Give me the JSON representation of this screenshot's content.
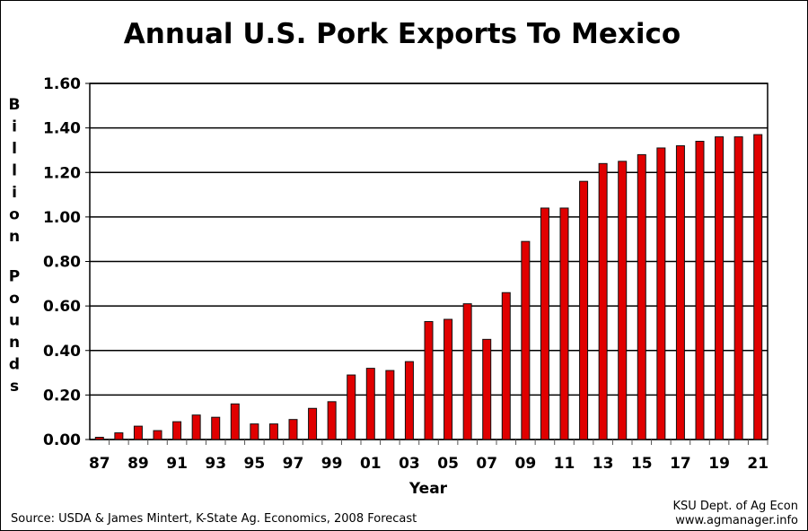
{
  "chart_data": {
    "type": "bar",
    "title": "Annual U.S. Pork Exports To Mexico",
    "xlabel": "Year",
    "ylabel": "Billion Pounds",
    "ylim": [
      0,
      1.6
    ],
    "yticks": [
      "0.00",
      "0.20",
      "0.40",
      "0.60",
      "0.80",
      "1.00",
      "1.20",
      "1.40",
      "1.60"
    ],
    "grid": true,
    "bar_color": "#e00000",
    "categories": [
      "87",
      "88",
      "89",
      "90",
      "91",
      "92",
      "93",
      "94",
      "95",
      "96",
      "97",
      "98",
      "99",
      "00",
      "01",
      "02",
      "03",
      "04",
      "05",
      "06",
      "07",
      "08",
      "09",
      "10",
      "11",
      "12",
      "13",
      "14",
      "15",
      "16",
      "17",
      "18",
      "19",
      "20",
      "21"
    ],
    "xtick_labels": [
      "87",
      "89",
      "91",
      "93",
      "95",
      "97",
      "99",
      "01",
      "03",
      "05",
      "07",
      "09",
      "11",
      "13",
      "15",
      "17",
      "19",
      "21"
    ],
    "values": [
      0.01,
      0.03,
      0.06,
      0.04,
      0.08,
      0.11,
      0.1,
      0.16,
      0.07,
      0.07,
      0.09,
      0.14,
      0.17,
      0.29,
      0.32,
      0.31,
      0.35,
      0.53,
      0.54,
      0.61,
      0.45,
      0.66,
      0.89,
      1.04,
      1.04,
      1.16,
      1.24,
      1.25,
      1.28,
      1.31,
      1.32,
      1.34,
      1.36,
      1.36,
      1.37
    ]
  },
  "source": "Source: USDA & James Mintert, K-State Ag. Economics, 2008 Forecast",
  "credit_line1": "KSU Dept. of Ag Econ",
  "credit_line2": "www.agmanager.info"
}
